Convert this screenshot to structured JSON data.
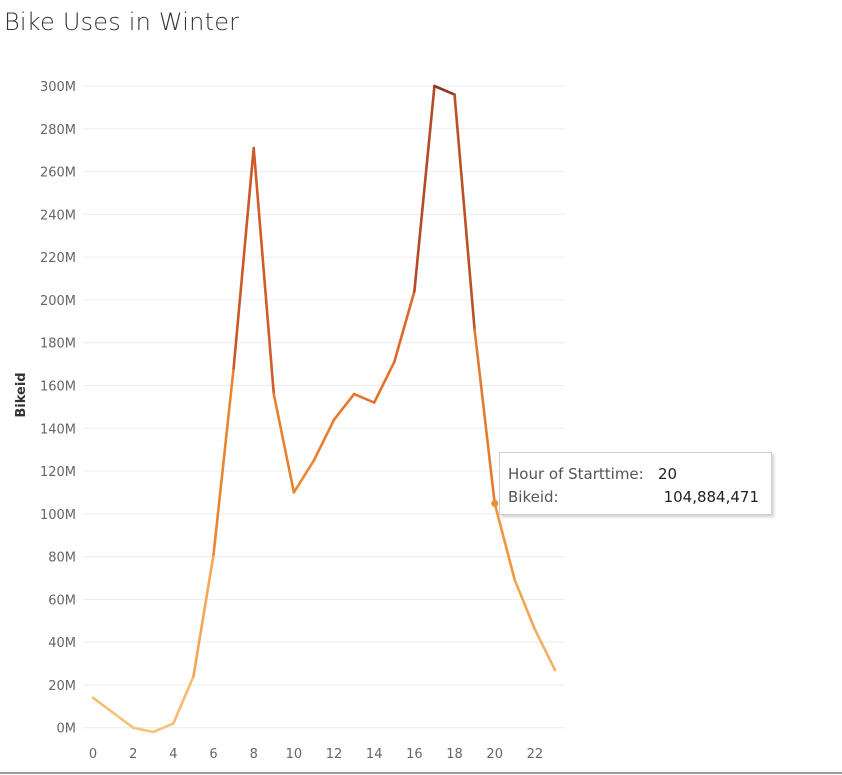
{
  "title": "Bike Uses in Winter",
  "chart_data": {
    "type": "line",
    "title": "Bike Uses in Winter",
    "xlabel": "",
    "ylabel": "Bikeid",
    "x": [
      0,
      1,
      2,
      3,
      4,
      5,
      6,
      7,
      8,
      9,
      10,
      11,
      12,
      13,
      14,
      15,
      16,
      17,
      18,
      19,
      20,
      21,
      22,
      23
    ],
    "values": [
      14000000,
      7000000,
      0,
      -2000000,
      2000000,
      24000000,
      81000000,
      168000000,
      271000000,
      156000000,
      110000000,
      125000000,
      144000000,
      156000000,
      152000000,
      171000000,
      204000000,
      300000000,
      296000000,
      186000000,
      104884471,
      69000000,
      46000000,
      27000000
    ],
    "xlim": [
      -0.5,
      23.5
    ],
    "ylim": [
      -2000000,
      300000000
    ],
    "x_ticks": [
      0,
      2,
      4,
      6,
      8,
      10,
      12,
      14,
      16,
      18,
      20,
      22
    ],
    "x_tick_labels": [
      "0",
      "2",
      "4",
      "6",
      "8",
      "10",
      "12",
      "14",
      "16",
      "18",
      "20",
      "22"
    ],
    "y_ticks": [
      0,
      20000000,
      40000000,
      60000000,
      80000000,
      100000000,
      120000000,
      140000000,
      160000000,
      180000000,
      200000000,
      220000000,
      240000000,
      260000000,
      280000000,
      300000000
    ],
    "y_tick_labels": [
      "0M",
      "20M",
      "40M",
      "60M",
      "80M",
      "100M",
      "120M",
      "140M",
      "160M",
      "180M",
      "200M",
      "220M",
      "240M",
      "260M",
      "280M",
      "300M"
    ],
    "grid": true,
    "color_scale": [
      "#f7c27a",
      "#ef8f33",
      "#d9622a",
      "#8f3522"
    ],
    "highlighted_point": {
      "x": 20,
      "y": 104884471
    }
  },
  "tooltip": {
    "hour_label": "Hour of Starttime:",
    "hour_value": "20",
    "bikeid_label": "Bikeid:",
    "bikeid_value": "104,884,471"
  }
}
